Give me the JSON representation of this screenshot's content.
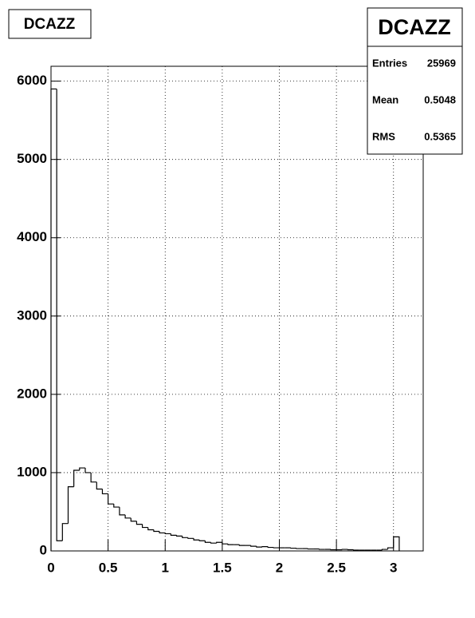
{
  "chart_data": {
    "type": "histogram",
    "title": "DCAZZ",
    "color": "#000000",
    "grid": true,
    "bins": [
      0,
      0.05,
      0.1,
      0.15,
      0.2,
      0.25,
      0.3,
      0.35,
      0.4,
      0.45,
      0.5,
      0.55,
      0.6,
      0.65,
      0.7,
      0.75,
      0.8,
      0.85,
      0.9,
      0.95,
      1.0,
      1.05,
      1.1,
      1.15,
      1.2,
      1.25,
      1.3,
      1.35,
      1.4,
      1.45,
      1.5,
      1.55,
      1.6,
      1.65,
      1.7,
      1.75,
      1.8,
      1.85,
      1.9,
      1.95,
      2.0,
      2.05,
      2.1,
      2.15,
      2.2,
      2.25,
      2.3,
      2.35,
      2.4,
      2.45,
      2.5,
      2.55,
      2.6,
      2.65,
      2.7,
      2.75,
      2.8,
      2.85,
      2.9,
      2.95,
      3.0,
      3.05
    ],
    "values": [
      5900,
      130,
      350,
      820,
      1030,
      1060,
      1000,
      880,
      790,
      730,
      600,
      560,
      460,
      420,
      380,
      340,
      300,
      270,
      250,
      230,
      220,
      200,
      190,
      170,
      160,
      140,
      130,
      110,
      100,
      110,
      90,
      80,
      80,
      70,
      70,
      60,
      50,
      55,
      45,
      40,
      40,
      40,
      35,
      30,
      30,
      25,
      25,
      20,
      20,
      15,
      15,
      20,
      15,
      10,
      10,
      10,
      10,
      10,
      20,
      40,
      180
    ],
    "xlim": [
      0,
      3.26
    ],
    "ylim": [
      0,
      6190
    ],
    "xticks": [
      0,
      0.5,
      1,
      1.5,
      2,
      2.5,
      3
    ],
    "yticks": [
      0,
      1000,
      2000,
      3000,
      4000,
      5000,
      6000
    ],
    "stats": [
      {
        "label": "Entries",
        "value": 25969
      },
      {
        "label": "Mean",
        "value": 0.5048
      },
      {
        "label": "RMS",
        "value": 0.5365
      }
    ]
  }
}
